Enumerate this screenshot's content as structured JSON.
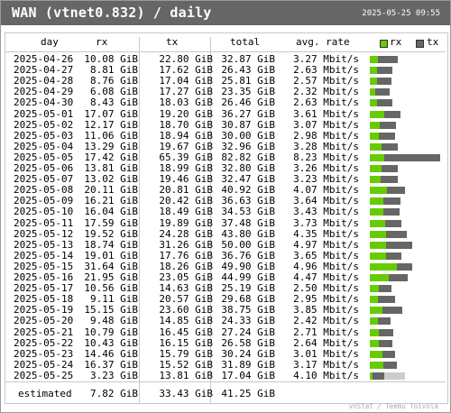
{
  "title": "WAN (vtnet0.832) / daily",
  "timestamp": "2025-05-25 09:55",
  "columns": {
    "day": "day",
    "rx": "rx",
    "tx": "tx",
    "total": "total",
    "rate": "avg. rate"
  },
  "legend": {
    "rx": "rx",
    "tx": "tx"
  },
  "colors": {
    "rx": "#66cc00",
    "tx": "#666666",
    "rx_estimate": "#a0a0a0",
    "tx_estimate": "#cccccc",
    "header": "#666666"
  },
  "bar_scale_max_gib": 82.82,
  "rows": [
    {
      "day": "2025-04-26",
      "rx": "10.08 GiB",
      "tx": "22.80 GiB",
      "total": "32.87 GiB",
      "rate": "3.27 Mbit/s",
      "rx_gib": 10.08,
      "tx_gib": 22.8
    },
    {
      "day": "2025-04-27",
      "rx": "8.81 GiB",
      "tx": "17.62 GiB",
      "total": "26.43 GiB",
      "rate": "2.63 Mbit/s",
      "rx_gib": 8.81,
      "tx_gib": 17.62
    },
    {
      "day": "2025-04-28",
      "rx": "8.76 GiB",
      "tx": "17.04 GiB",
      "total": "25.81 GiB",
      "rate": "2.57 Mbit/s",
      "rx_gib": 8.76,
      "tx_gib": 17.04
    },
    {
      "day": "2025-04-29",
      "rx": "6.08 GiB",
      "tx": "17.27 GiB",
      "total": "23.35 GiB",
      "rate": "2.32 Mbit/s",
      "rx_gib": 6.08,
      "tx_gib": 17.27
    },
    {
      "day": "2025-04-30",
      "rx": "8.43 GiB",
      "tx": "18.03 GiB",
      "total": "26.46 GiB",
      "rate": "2.63 Mbit/s",
      "rx_gib": 8.43,
      "tx_gib": 18.03
    },
    {
      "day": "2025-05-01",
      "rx": "17.07 GiB",
      "tx": "19.20 GiB",
      "total": "36.27 GiB",
      "rate": "3.61 Mbit/s",
      "rx_gib": 17.07,
      "tx_gib": 19.2
    },
    {
      "day": "2025-05-02",
      "rx": "12.17 GiB",
      "tx": "18.70 GiB",
      "total": "30.87 GiB",
      "rate": "3.07 Mbit/s",
      "rx_gib": 12.17,
      "tx_gib": 18.7
    },
    {
      "day": "2025-05-03",
      "rx": "11.06 GiB",
      "tx": "18.94 GiB",
      "total": "30.00 GiB",
      "rate": "2.98 Mbit/s",
      "rx_gib": 11.06,
      "tx_gib": 18.94
    },
    {
      "day": "2025-05-04",
      "rx": "13.29 GiB",
      "tx": "19.67 GiB",
      "total": "32.96 GiB",
      "rate": "3.28 Mbit/s",
      "rx_gib": 13.29,
      "tx_gib": 19.67
    },
    {
      "day": "2025-05-05",
      "rx": "17.42 GiB",
      "tx": "65.39 GiB",
      "total": "82.82 GiB",
      "rate": "8.23 Mbit/s",
      "rx_gib": 17.42,
      "tx_gib": 65.39
    },
    {
      "day": "2025-05-06",
      "rx": "13.81 GiB",
      "tx": "18.99 GiB",
      "total": "32.80 GiB",
      "rate": "3.26 Mbit/s",
      "rx_gib": 13.81,
      "tx_gib": 18.99
    },
    {
      "day": "2025-05-07",
      "rx": "13.02 GiB",
      "tx": "19.46 GiB",
      "total": "32.47 GiB",
      "rate": "3.23 Mbit/s",
      "rx_gib": 13.02,
      "tx_gib": 19.46
    },
    {
      "day": "2025-05-08",
      "rx": "20.11 GiB",
      "tx": "20.81 GiB",
      "total": "40.92 GiB",
      "rate": "4.07 Mbit/s",
      "rx_gib": 20.11,
      "tx_gib": 20.81
    },
    {
      "day": "2025-05-09",
      "rx": "16.21 GiB",
      "tx": "20.42 GiB",
      "total": "36.63 GiB",
      "rate": "3.64 Mbit/s",
      "rx_gib": 16.21,
      "tx_gib": 20.42
    },
    {
      "day": "2025-05-10",
      "rx": "16.04 GiB",
      "tx": "18.49 GiB",
      "total": "34.53 GiB",
      "rate": "3.43 Mbit/s",
      "rx_gib": 16.04,
      "tx_gib": 18.49
    },
    {
      "day": "2025-05-11",
      "rx": "17.59 GiB",
      "tx": "19.89 GiB",
      "total": "37.48 GiB",
      "rate": "3.73 Mbit/s",
      "rx_gib": 17.59,
      "tx_gib": 19.89
    },
    {
      "day": "2025-05-12",
      "rx": "19.52 GiB",
      "tx": "24.28 GiB",
      "total": "43.80 GiB",
      "rate": "4.35 Mbit/s",
      "rx_gib": 19.52,
      "tx_gib": 24.28
    },
    {
      "day": "2025-05-13",
      "rx": "18.74 GiB",
      "tx": "31.26 GiB",
      "total": "50.00 GiB",
      "rate": "4.97 Mbit/s",
      "rx_gib": 18.74,
      "tx_gib": 31.26
    },
    {
      "day": "2025-05-14",
      "rx": "19.01 GiB",
      "tx": "17.76 GiB",
      "total": "36.76 GiB",
      "rate": "3.65 Mbit/s",
      "rx_gib": 19.01,
      "tx_gib": 17.76
    },
    {
      "day": "2025-05-15",
      "rx": "31.64 GiB",
      "tx": "18.26 GiB",
      "total": "49.90 GiB",
      "rate": "4.96 Mbit/s",
      "rx_gib": 31.64,
      "tx_gib": 18.26
    },
    {
      "day": "2025-05-16",
      "rx": "21.95 GiB",
      "tx": "23.05 GiB",
      "total": "44.99 GiB",
      "rate": "4.47 Mbit/s",
      "rx_gib": 21.95,
      "tx_gib": 23.05
    },
    {
      "day": "2025-05-17",
      "rx": "10.56 GiB",
      "tx": "14.63 GiB",
      "total": "25.19 GiB",
      "rate": "2.50 Mbit/s",
      "rx_gib": 10.56,
      "tx_gib": 14.63
    },
    {
      "day": "2025-05-18",
      "rx": "9.11 GiB",
      "tx": "20.57 GiB",
      "total": "29.68 GiB",
      "rate": "2.95 Mbit/s",
      "rx_gib": 9.11,
      "tx_gib": 20.57
    },
    {
      "day": "2025-05-19",
      "rx": "15.15 GiB",
      "tx": "23.60 GiB",
      "total": "38.75 GiB",
      "rate": "3.85 Mbit/s",
      "rx_gib": 15.15,
      "tx_gib": 23.6
    },
    {
      "day": "2025-05-20",
      "rx": "9.48 GiB",
      "tx": "14.85 GiB",
      "total": "24.33 GiB",
      "rate": "2.42 Mbit/s",
      "rx_gib": 9.48,
      "tx_gib": 14.85
    },
    {
      "day": "2025-05-21",
      "rx": "10.79 GiB",
      "tx": "16.45 GiB",
      "total": "27.24 GiB",
      "rate": "2.71 Mbit/s",
      "rx_gib": 10.79,
      "tx_gib": 16.45
    },
    {
      "day": "2025-05-22",
      "rx": "10.43 GiB",
      "tx": "16.15 GiB",
      "total": "26.58 GiB",
      "rate": "2.64 Mbit/s",
      "rx_gib": 10.43,
      "tx_gib": 16.15
    },
    {
      "day": "2025-05-23",
      "rx": "14.46 GiB",
      "tx": "15.79 GiB",
      "total": "30.24 GiB",
      "rate": "3.01 Mbit/s",
      "rx_gib": 14.46,
      "tx_gib": 15.79
    },
    {
      "day": "2025-05-24",
      "rx": "16.37 GiB",
      "tx": "15.52 GiB",
      "total": "31.89 GiB",
      "rate": "3.17 Mbit/s",
      "rx_gib": 16.37,
      "tx_gib": 15.52
    },
    {
      "day": "2025-05-25",
      "rx": "3.23 GiB",
      "tx": "13.81 GiB",
      "total": "17.04 GiB",
      "rate": "4.10 Mbit/s",
      "rx_gib": 3.23,
      "tx_gib": 13.81,
      "estimate_rx_gib": 7.82,
      "estimate_tx_gib": 33.43
    }
  ],
  "estimated": {
    "label": "estimated",
    "rx": "7.82 GiB",
    "tx": "33.43 GiB",
    "total": "41.25 GiB"
  },
  "footer": "vnStat / Teemu Toivola"
}
